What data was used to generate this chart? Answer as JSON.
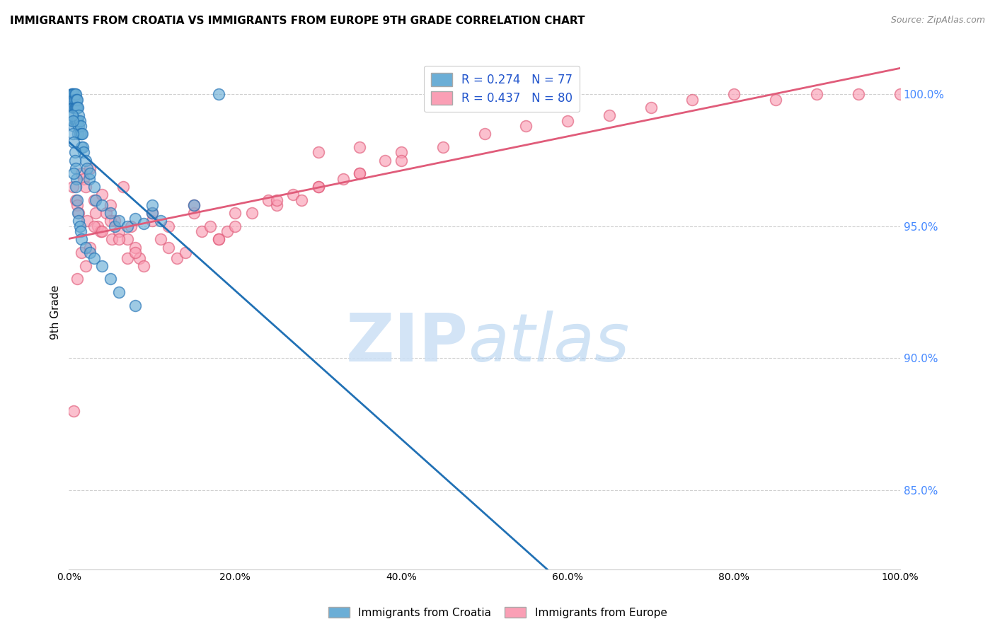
{
  "title": "IMMIGRANTS FROM CROATIA VS IMMIGRANTS FROM EUROPE 9TH GRADE CORRELATION CHART",
  "source": "Source: ZipAtlas.com",
  "ylabel": "9th Grade",
  "xticklabels": [
    "0.0%",
    "20.0%",
    "40.0%",
    "60.0%",
    "80.0%",
    "100.0%"
  ],
  "xticks": [
    0,
    20,
    40,
    60,
    80,
    100
  ],
  "yticklabels_right": [
    "85.0%",
    "90.0%",
    "95.0%",
    "100.0%"
  ],
  "yticks_right": [
    85,
    90,
    95,
    100
  ],
  "blue_color": "#6baed6",
  "pink_color": "#fa9fb5",
  "blue_line_color": "#2171b5",
  "pink_line_color": "#e05c7a",
  "blue_R": 0.274,
  "blue_N": 77,
  "pink_R": 0.437,
  "pink_N": 80,
  "ylim_min": 82,
  "ylim_max": 101.5,
  "xlim_min": 0,
  "xlim_max": 100,
  "blue_scatter_x": [
    0.3,
    0.4,
    0.4,
    0.5,
    0.5,
    0.5,
    0.6,
    0.6,
    0.6,
    0.6,
    0.7,
    0.7,
    0.7,
    0.7,
    0.8,
    0.8,
    0.8,
    0.9,
    0.9,
    0.9,
    1.0,
    1.0,
    1.0,
    1.1,
    1.1,
    1.1,
    1.2,
    1.2,
    1.3,
    1.3,
    1.4,
    1.5,
    1.5,
    1.6,
    1.7,
    1.8,
    2.0,
    2.2,
    2.4,
    2.5,
    3.0,
    3.2,
    4.0,
    5.0,
    5.5,
    6.0,
    7.0,
    8.0,
    9.0,
    10.0,
    0.4,
    0.5,
    0.5,
    0.6,
    0.7,
    0.7,
    0.8,
    0.9,
    1.0,
    1.1,
    1.2,
    1.3,
    1.4,
    1.5,
    2.0,
    2.5,
    3.0,
    4.0,
    5.0,
    6.0,
    8.0,
    10.0,
    11.0,
    15.0,
    18.0,
    0.6,
    0.8
  ],
  "blue_scatter_y": [
    100.0,
    100.0,
    99.8,
    100.0,
    99.5,
    99.2,
    100.0,
    99.8,
    99.5,
    98.8,
    100.0,
    99.8,
    99.5,
    99.0,
    100.0,
    99.5,
    99.0,
    99.8,
    99.5,
    99.0,
    99.8,
    99.5,
    99.0,
    99.5,
    99.0,
    98.5,
    99.2,
    98.8,
    99.0,
    98.5,
    98.8,
    98.5,
    98.0,
    98.5,
    98.0,
    97.8,
    97.5,
    97.2,
    96.8,
    97.0,
    96.5,
    96.0,
    95.8,
    95.5,
    95.0,
    95.2,
    95.0,
    95.3,
    95.1,
    95.5,
    99.2,
    99.0,
    98.5,
    98.2,
    97.8,
    97.5,
    97.2,
    96.8,
    96.0,
    95.5,
    95.2,
    95.0,
    94.8,
    94.5,
    94.2,
    94.0,
    93.8,
    93.5,
    93.0,
    92.5,
    92.0,
    95.8,
    95.2,
    95.8,
    100.0,
    97.0,
    96.5
  ],
  "pink_scatter_x": [
    0.5,
    0.8,
    1.0,
    1.2,
    1.5,
    1.8,
    2.0,
    2.2,
    2.5,
    3.0,
    3.2,
    3.5,
    3.8,
    4.0,
    4.5,
    5.0,
    5.2,
    5.5,
    6.0,
    6.5,
    7.0,
    7.5,
    8.0,
    8.5,
    9.0,
    10.0,
    11.0,
    12.0,
    13.0,
    14.0,
    15.0,
    16.0,
    17.0,
    18.0,
    19.0,
    20.0,
    22.0,
    24.0,
    25.0,
    27.0,
    28.0,
    30.0,
    33.0,
    35.0,
    38.0,
    40.0,
    45.0,
    50.0,
    55.0,
    60.0,
    65.0,
    70.0,
    75.0,
    80.0,
    85.0,
    90.0,
    95.0,
    100.0,
    0.6,
    1.0,
    1.5,
    2.0,
    2.5,
    3.0,
    4.0,
    5.0,
    6.0,
    7.0,
    8.0,
    10.0,
    12.0,
    15.0,
    18.0,
    20.0,
    25.0,
    30.0,
    35.0,
    40.0,
    30.0,
    35.0
  ],
  "pink_scatter_y": [
    96.5,
    96.0,
    95.8,
    95.5,
    97.0,
    96.8,
    96.5,
    95.2,
    97.2,
    96.0,
    95.5,
    95.0,
    94.8,
    96.2,
    95.5,
    95.8,
    94.5,
    95.2,
    94.8,
    96.5,
    94.5,
    95.0,
    94.2,
    93.8,
    93.5,
    95.2,
    94.5,
    94.2,
    93.8,
    94.0,
    95.5,
    94.8,
    95.0,
    94.5,
    94.8,
    95.0,
    95.5,
    96.0,
    95.8,
    96.2,
    96.0,
    96.5,
    96.8,
    97.0,
    97.5,
    97.8,
    98.0,
    98.5,
    98.8,
    99.0,
    99.2,
    99.5,
    99.8,
    100.0,
    99.8,
    100.0,
    100.0,
    100.0,
    88.0,
    93.0,
    94.0,
    93.5,
    94.2,
    95.0,
    94.8,
    95.2,
    94.5,
    93.8,
    94.0,
    95.5,
    95.0,
    95.8,
    94.5,
    95.5,
    96.0,
    96.5,
    97.0,
    97.5,
    97.8,
    98.0
  ]
}
